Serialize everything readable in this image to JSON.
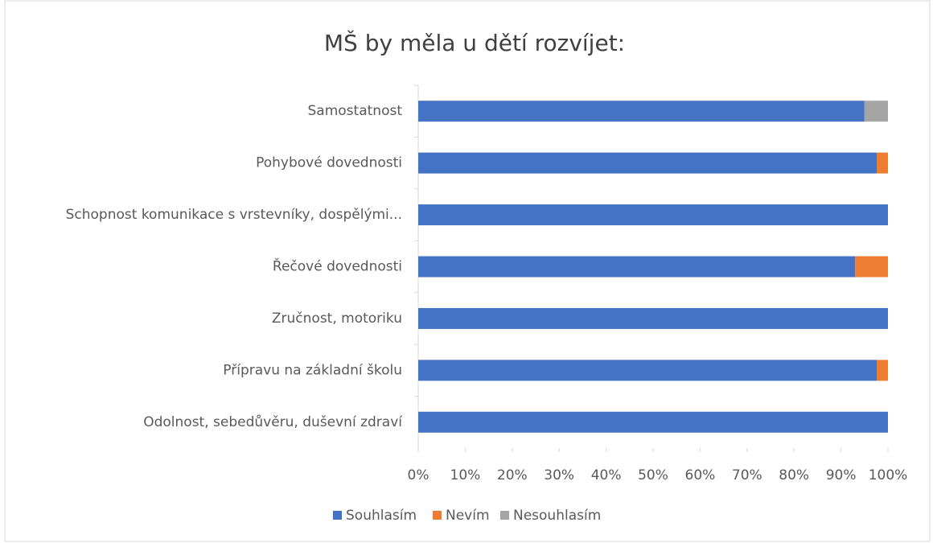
{
  "chart_data": {
    "type": "stacked_barh",
    "title": "MŠ by měla u dětí rozvíjet:",
    "categories": [
      "Samostatnost",
      "Pohybové dovednosti",
      "Schopnost komunikace s vrstevníky, dospělými...",
      "Řečové dovednosti",
      "Zručnost, motoriku",
      "Přípravu na základní školu",
      "Odolnost, sebedůvěru, duševní zdraví"
    ],
    "series": [
      {
        "name": "Souhlasím",
        "color": "#4472c4",
        "values": [
          95,
          97.6,
          100,
          93,
          100,
          97.6,
          100
        ]
      },
      {
        "name": "Nevím",
        "color": "#ed7d31",
        "values": [
          0,
          2.4,
          0,
          7,
          0,
          2.4,
          0
        ]
      },
      {
        "name": "Nesouhlasím",
        "color": "#a5a5a5",
        "values": [
          5,
          0,
          0,
          0,
          0,
          0,
          0
        ]
      }
    ],
    "xlim": [
      0,
      100
    ],
    "xticks": [
      {
        "value": 0,
        "label": "0%"
      },
      {
        "value": 10,
        "label": "10%"
      },
      {
        "value": 20,
        "label": "20%"
      },
      {
        "value": 30,
        "label": "30%"
      },
      {
        "value": 40,
        "label": "40%"
      },
      {
        "value": 50,
        "label": "50%"
      },
      {
        "value": 60,
        "label": "60%"
      },
      {
        "value": 70,
        "label": "70%"
      },
      {
        "value": 80,
        "label": "80%"
      },
      {
        "value": 90,
        "label": "90%"
      },
      {
        "value": 100,
        "label": "100%"
      }
    ],
    "legend": "bottom"
  }
}
